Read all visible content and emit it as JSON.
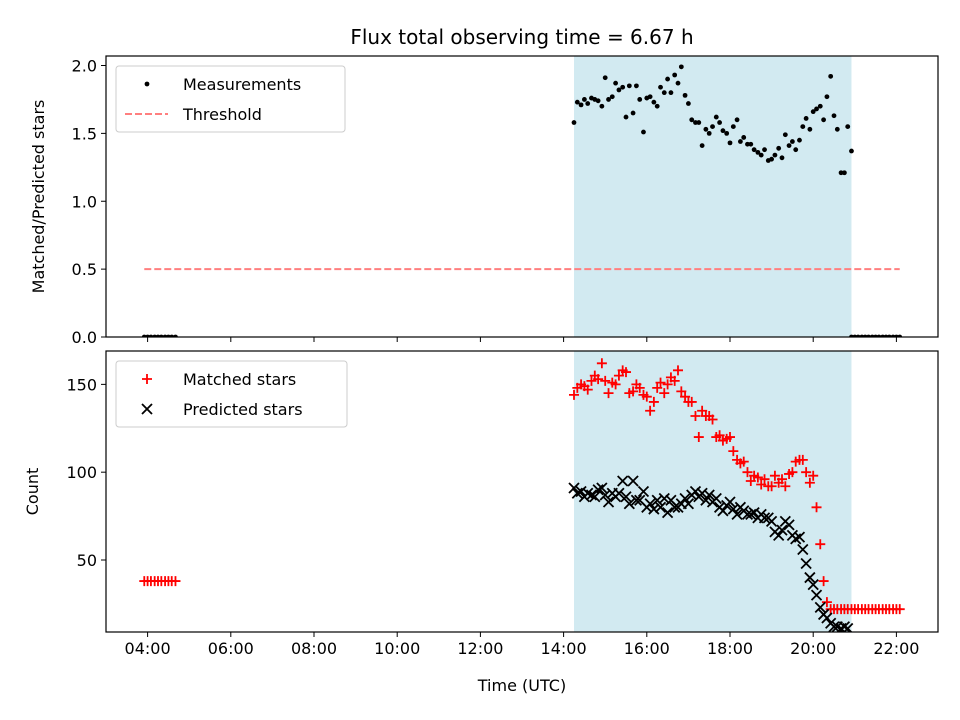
{
  "chart_data": {
    "type": "scatter",
    "title": "Flux total observing time = 6.67 h",
    "xlabel": "Time (UTC)",
    "x_unit": "hours UTC",
    "xlim": [
      3.0,
      23.0
    ],
    "x_ticks": [
      4,
      6,
      8,
      10,
      12,
      14,
      16,
      18,
      20,
      22
    ],
    "x_tick_labels": [
      "04:00",
      "06:00",
      "08:00",
      "10:00",
      "12:00",
      "14:00",
      "16:00",
      "18:00",
      "20:00",
      "22:00"
    ],
    "observing_window": {
      "start": 14.25,
      "end": 20.92,
      "color": "#add8e6"
    },
    "panels": [
      {
        "ylabel": "Matched/Predicted stars",
        "ylim": [
          0,
          2.07
        ],
        "y_ticks": [
          0.0,
          0.5,
          1.0,
          1.5,
          2.0
        ],
        "y_tick_labels": [
          "0.0",
          "0.5",
          "1.0",
          "1.5",
          "2.0"
        ],
        "legend": {
          "placement": "upper-left",
          "entries": [
            "Measurements",
            "Threshold"
          ]
        },
        "series": [
          {
            "name": "Measurements",
            "marker": "dot",
            "color": "#000000",
            "x": [
              3.92,
              4.0,
              4.08,
              4.17,
              4.25,
              4.33,
              4.42,
              4.5,
              4.58,
              4.67,
              14.25,
              14.33,
              14.42,
              14.5,
              14.58,
              14.67,
              14.75,
              14.83,
              14.92,
              15.0,
              15.08,
              15.17,
              15.25,
              15.33,
              15.42,
              15.5,
              15.58,
              15.67,
              15.75,
              15.83,
              15.92,
              16.0,
              16.08,
              16.17,
              16.25,
              16.33,
              16.42,
              16.5,
              16.58,
              16.67,
              16.75,
              16.83,
              16.92,
              17.0,
              17.08,
              17.17,
              17.25,
              17.33,
              17.42,
              17.5,
              17.58,
              17.67,
              17.75,
              17.83,
              17.92,
              18.0,
              18.08,
              18.17,
              18.25,
              18.33,
              18.42,
              18.5,
              18.58,
              18.67,
              18.75,
              18.83,
              18.92,
              19.0,
              19.08,
              19.17,
              19.25,
              19.33,
              19.42,
              19.5,
              19.58,
              19.67,
              19.75,
              19.83,
              19.92,
              20.0,
              20.08,
              20.17,
              20.25,
              20.33,
              20.42,
              20.5,
              20.58,
              20.67,
              20.75,
              20.83,
              20.92,
              20.92,
              21.0,
              21.08,
              21.17,
              21.25,
              21.33,
              21.42,
              21.5,
              21.58,
              21.67,
              21.75,
              21.83,
              21.92,
              22.0,
              22.08
            ],
            "y": [
              0,
              0,
              0,
              0,
              0,
              0,
              0,
              0,
              0,
              0,
              1.58,
              1.73,
              1.71,
              1.75,
              1.72,
              1.76,
              1.75,
              1.74,
              1.7,
              1.91,
              1.75,
              1.77,
              1.87,
              1.82,
              1.84,
              1.62,
              1.85,
              1.65,
              1.85,
              1.75,
              1.51,
              1.76,
              1.77,
              1.73,
              1.7,
              1.84,
              1.8,
              1.9,
              1.8,
              1.93,
              1.87,
              1.99,
              1.78,
              1.72,
              1.6,
              1.58,
              1.58,
              1.41,
              1.53,
              1.5,
              1.55,
              1.62,
              1.58,
              1.52,
              1.5,
              1.43,
              1.55,
              1.6,
              1.44,
              1.47,
              1.42,
              1.42,
              1.38,
              1.36,
              1.34,
              1.38,
              1.3,
              1.31,
              1.34,
              1.39,
              1.32,
              1.49,
              1.41,
              1.44,
              1.38,
              1.45,
              1.55,
              1.61,
              1.53,
              1.66,
              1.68,
              1.7,
              1.6,
              1.77,
              1.92,
              1.63,
              1.53,
              1.21,
              1.21,
              1.55,
              1.37,
              0,
              0,
              0,
              0,
              0,
              0,
              0,
              0,
              0,
              0,
              0,
              0,
              0,
              0,
              0
            ]
          },
          {
            "name": "Threshold",
            "marker": "dashed-line",
            "color": "#ff7f7f",
            "x": [
              3.92,
              22.08
            ],
            "y": [
              0.5,
              0.5
            ]
          }
        ]
      },
      {
        "ylabel": "Count",
        "ylim": [
          9,
          169
        ],
        "y_ticks": [
          50,
          100,
          150
        ],
        "y_tick_labels": [
          "50",
          "100",
          "150"
        ],
        "legend": {
          "placement": "upper-left",
          "entries": [
            "Matched stars",
            "Predicted stars"
          ]
        },
        "series": [
          {
            "name": "Matched stars",
            "marker": "plus",
            "color": "#ff0000",
            "x": [
              3.92,
              4.0,
              4.08,
              4.17,
              4.25,
              4.33,
              4.42,
              4.5,
              4.58,
              4.67,
              14.25,
              14.33,
              14.42,
              14.5,
              14.58,
              14.67,
              14.75,
              14.83,
              14.92,
              15.0,
              15.08,
              15.17,
              15.25,
              15.33,
              15.42,
              15.5,
              15.58,
              15.67,
              15.75,
              15.83,
              15.92,
              16.0,
              16.08,
              16.17,
              16.25,
              16.33,
              16.42,
              16.5,
              16.58,
              16.67,
              16.75,
              16.83,
              16.92,
              17.0,
              17.08,
              17.17,
              17.25,
              17.33,
              17.42,
              17.5,
              17.58,
              17.67,
              17.75,
              17.83,
              17.92,
              18.0,
              18.08,
              18.17,
              18.25,
              18.33,
              18.42,
              18.5,
              18.58,
              18.67,
              18.75,
              18.83,
              18.92,
              19.0,
              19.08,
              19.17,
              19.25,
              19.33,
              19.42,
              19.5,
              19.58,
              19.67,
              19.75,
              19.83,
              19.92,
              20.0,
              20.08,
              20.17,
              20.25,
              20.33,
              20.42,
              20.5,
              20.58,
              20.67,
              20.75,
              20.83,
              20.92,
              21.0,
              21.08,
              21.17,
              21.25,
              21.33,
              21.42,
              21.5,
              21.58,
              21.67,
              21.75,
              21.83,
              21.92,
              22.0,
              22.08
            ],
            "y": [
              38,
              38,
              38,
              38,
              38,
              38,
              38,
              38,
              38,
              38,
              144,
              148,
              150,
              149,
              147,
              152,
              155,
              153,
              162,
              152,
              145,
              151,
              150,
              155,
              158,
              157,
              145,
              146,
              150,
              148,
              144,
              143,
              135,
              140,
              148,
              151,
              145,
              150,
              154,
              152,
              158,
              146,
              143,
              140,
              140,
              132,
              120,
              135,
              132,
              132,
              130,
              120,
              121,
              118,
              119,
              120,
              112,
              107,
              105,
              106,
              100,
              95,
              98,
              97,
              93,
              96,
              92,
              92,
              98,
              94,
              96,
              92,
              99,
              100,
              106,
              107,
              107,
              100,
              94,
              98,
              80,
              59,
              38,
              26,
              22,
              22,
              22,
              22,
              22,
              22,
              22,
              22,
              22,
              22,
              22,
              22,
              22,
              22,
              22,
              22,
              22,
              22,
              22,
              22,
              22
            ],
            "note": ""
          },
          {
            "name": "Predicted stars",
            "marker": "x",
            "color": "#000000",
            "x": [
              14.25,
              14.33,
              14.42,
              14.5,
              14.58,
              14.67,
              14.75,
              14.83,
              14.92,
              15.0,
              15.08,
              15.17,
              15.25,
              15.33,
              15.42,
              15.5,
              15.58,
              15.67,
              15.75,
              15.83,
              15.92,
              16.0,
              16.08,
              16.17,
              16.25,
              16.33,
              16.42,
              16.5,
              16.58,
              16.67,
              16.75,
              16.83,
              16.92,
              17.0,
              17.08,
              17.17,
              17.25,
              17.33,
              17.42,
              17.5,
              17.58,
              17.67,
              17.75,
              17.83,
              17.92,
              18.0,
              18.08,
              18.17,
              18.25,
              18.33,
              18.42,
              18.5,
              18.58,
              18.67,
              18.75,
              18.83,
              18.92,
              19.0,
              19.08,
              19.17,
              19.25,
              19.33,
              19.42,
              19.5,
              19.58,
              19.67,
              19.75,
              19.83,
              19.92,
              20.0,
              20.08,
              20.17,
              20.25,
              20.33,
              20.42,
              20.5,
              20.58,
              20.67,
              20.75,
              20.83
            ],
            "y": [
              91,
              88,
              89,
              86,
              88,
              87,
              86,
              90,
              91,
              87,
              83,
              88,
              86,
              88,
              95,
              86,
              82,
              95,
              84,
              84,
              89,
              80,
              82,
              79,
              84,
              80,
              85,
              77,
              84,
              80,
              80,
              82,
              85,
              82,
              87,
              89,
              86,
              88,
              84,
              87,
              83,
              85,
              80,
              78,
              81,
              83,
              79,
              76,
              80,
              78,
              76,
              76,
              77,
              74,
              76,
              74,
              74,
              72,
              66,
              64,
              67,
              72,
              70,
              64,
              62,
              63,
              56,
              48,
              40,
              36,
              30,
              23,
              19,
              17,
              14,
              12,
              12,
              11,
              12,
              11
            ]
          }
        ]
      }
    ]
  }
}
